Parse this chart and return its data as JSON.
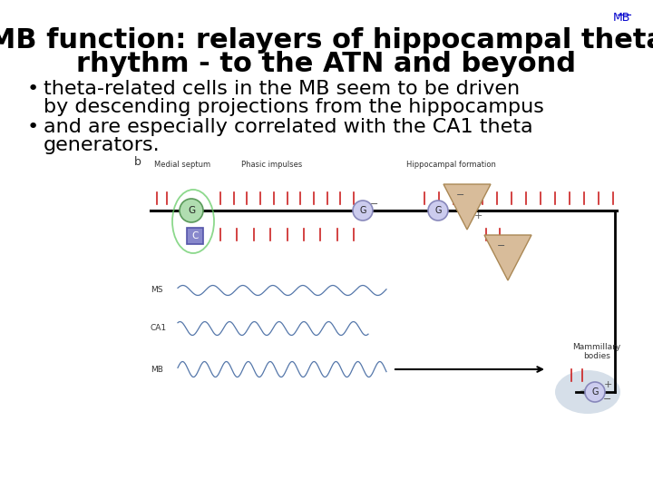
{
  "bg_color": "#ffffff",
  "title_line1": "MB function: relayers of hippocampal theta",
  "title_line2": "rhythm - to the ATN and beyond",
  "mb_label": "MB",
  "mb_label_color": "#0000cc",
  "title_color": "#000000",
  "title_fontsize": 22,
  "bullet1_line1": "theta-related cells in the MB seem to be driven",
  "bullet1_line2": "by descending projections from the hippocampus",
  "bullet2_line1": "and are especially correlated with the CA1 theta",
  "bullet2_line2": "generators.",
  "bullet_fontsize": 16,
  "bullet_color": "#000000",
  "font_family": "DejaVu Sans",
  "wave_color": "#5577aa",
  "pulse_color": "#cc2222",
  "diagram_label": "b",
  "label_medial": "Medial septum",
  "label_phasic": "Phasic impulses",
  "label_hippo": "Hippocampal formation",
  "label_ms": "MS",
  "label_ca1": "CA1",
  "label_mb_trace": "MB",
  "label_mammillary": "Mammillary\nbodies"
}
